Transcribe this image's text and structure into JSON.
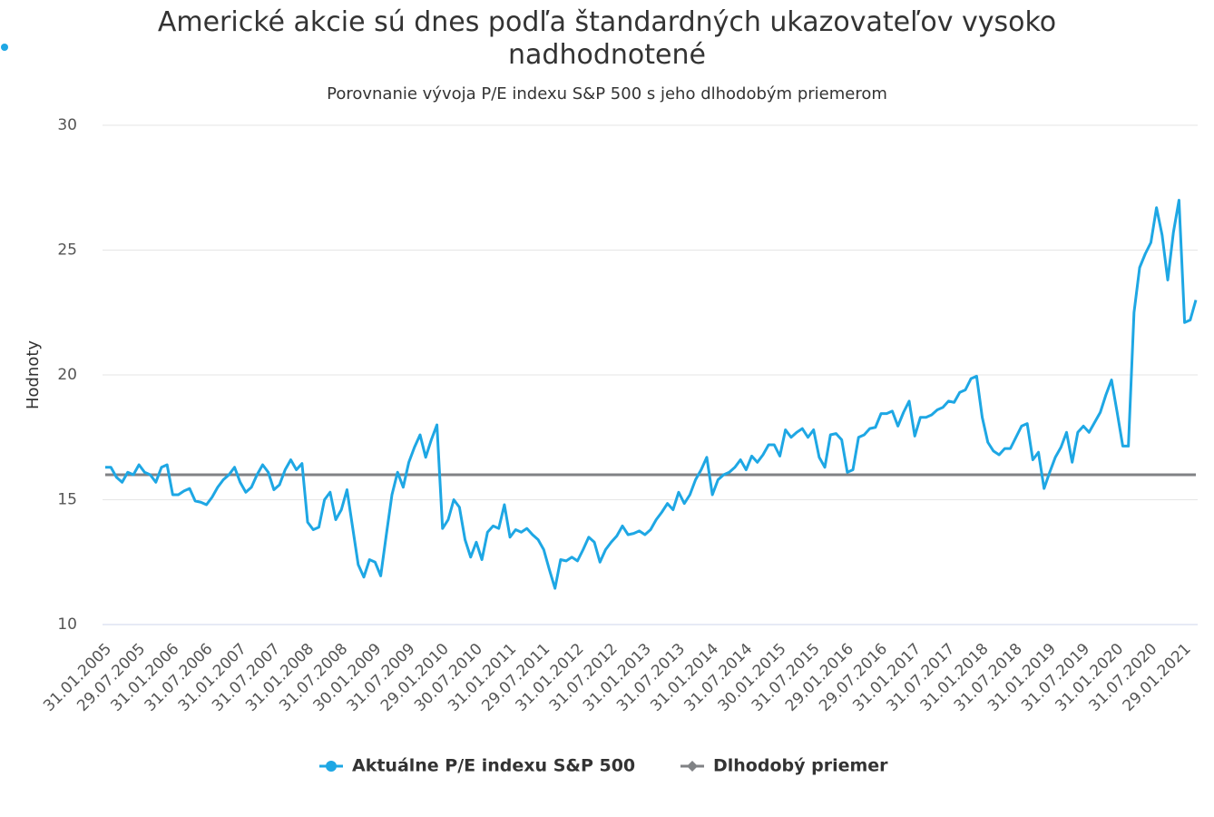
{
  "chart_data": {
    "type": "line",
    "title": "Americké akcie sú dnes podľa štandardných ukazovateľov vysoko nadhodnotené",
    "subtitle": "Porovnanie vývoja P/E indexu S&P 500 s jeho dlhodobým priemerom",
    "y_label": "Hodnoty",
    "categories": [
      "31.01.2005",
      null,
      null,
      null,
      null,
      null,
      "29.07.2005",
      null,
      null,
      null,
      null,
      null,
      "31.01.2006",
      null,
      null,
      null,
      null,
      null,
      "31.07.2006",
      null,
      null,
      null,
      null,
      null,
      "31.01.2007",
      null,
      null,
      null,
      null,
      null,
      "31.07.2007",
      null,
      null,
      null,
      null,
      null,
      "31.01.2008",
      null,
      null,
      null,
      null,
      null,
      "31.07.2008",
      null,
      null,
      null,
      null,
      null,
      "30.01.2009",
      null,
      null,
      null,
      null,
      null,
      "31.07.2009",
      null,
      null,
      null,
      null,
      null,
      "29.01.2010",
      null,
      null,
      null,
      null,
      null,
      "30.07.2010",
      null,
      null,
      null,
      null,
      null,
      "31.01.2011",
      null,
      null,
      null,
      null,
      null,
      "29.07.2011",
      null,
      null,
      null,
      null,
      null,
      "31.01.2012",
      null,
      null,
      null,
      null,
      null,
      "31.07.2012",
      null,
      null,
      null,
      null,
      null,
      "31.01.2013",
      null,
      null,
      null,
      null,
      null,
      "31.07.2013",
      null,
      null,
      null,
      null,
      null,
      "31.01.2014",
      null,
      null,
      null,
      null,
      null,
      "31.07.2014",
      null,
      null,
      null,
      null,
      null,
      "30.01.2015",
      null,
      null,
      null,
      null,
      null,
      "31.07.2015",
      null,
      null,
      null,
      null,
      null,
      "29.01.2016",
      null,
      null,
      null,
      null,
      null,
      "29.07.2016",
      null,
      null,
      null,
      null,
      null,
      "31.01.2017",
      null,
      null,
      null,
      null,
      null,
      "31.07.2017",
      null,
      null,
      null,
      null,
      null,
      "31.01.2018",
      null,
      null,
      null,
      null,
      null,
      "31.07.2018",
      null,
      null,
      null,
      null,
      null,
      "31.01.2019",
      null,
      null,
      null,
      null,
      null,
      "31.07.2019",
      null,
      null,
      null,
      null,
      null,
      "31.01.2020",
      null,
      null,
      null,
      null,
      null,
      "31.07.2020",
      null,
      null,
      null,
      null,
      null,
      "29.01.2021",
      null,
      null
    ],
    "series": [
      {
        "name": "Aktuálne P/E indexu S&P 500",
        "color": "#1ea7e4",
        "marker": "circle",
        "values": [
          16.3,
          16.3,
          15.9,
          15.7,
          16.1,
          16.0,
          16.4,
          16.1,
          16.0,
          15.7,
          16.3,
          16.4,
          15.2,
          15.2,
          15.35,
          15.45,
          14.95,
          14.9,
          14.8,
          15.1,
          15.5,
          15.8,
          16.0,
          16.3,
          15.7,
          15.3,
          15.5,
          16.0,
          16.4,
          16.1,
          15.4,
          15.6,
          16.2,
          16.6,
          16.2,
          16.45,
          14.1,
          13.8,
          13.9,
          15.0,
          15.3,
          14.2,
          14.6,
          15.4,
          13.9,
          12.4,
          11.9,
          12.6,
          12.5,
          11.95,
          13.6,
          15.2,
          16.1,
          15.5,
          16.5,
          17.1,
          17.6,
          16.7,
          17.4,
          18.0,
          13.85,
          14.2,
          15.0,
          14.7,
          13.4,
          12.7,
          13.3,
          12.6,
          13.7,
          13.95,
          13.85,
          14.8,
          13.5,
          13.8,
          13.7,
          13.85,
          13.6,
          13.4,
          13.0,
          12.2,
          11.45,
          12.6,
          12.55,
          12.7,
          12.55,
          13.0,
          13.5,
          13.3,
          12.5,
          13.0,
          13.3,
          13.55,
          13.95,
          13.6,
          13.65,
          13.75,
          13.6,
          13.8,
          14.2,
          14.5,
          14.85,
          14.6,
          15.3,
          14.85,
          15.2,
          15.8,
          16.2,
          16.7,
          15.2,
          15.8,
          16.0,
          16.1,
          16.3,
          16.6,
          16.2,
          16.75,
          16.5,
          16.8,
          17.2,
          17.2,
          16.75,
          17.8,
          17.5,
          17.7,
          17.85,
          17.5,
          17.8,
          16.7,
          16.3,
          17.6,
          17.65,
          17.4,
          16.1,
          16.2,
          17.5,
          17.6,
          17.85,
          17.9,
          18.45,
          18.45,
          18.55,
          17.95,
          18.5,
          18.95,
          17.55,
          18.3,
          18.3,
          18.4,
          18.6,
          18.7,
          18.95,
          18.9,
          19.3,
          19.4,
          19.85,
          19.95,
          18.3,
          17.3,
          16.95,
          16.8,
          17.05,
          17.05,
          17.5,
          17.95,
          18.05,
          16.6,
          16.9,
          15.45,
          16.1,
          16.7,
          17.1,
          17.7,
          16.5,
          17.7,
          17.95,
          17.7,
          18.1,
          18.5,
          19.2,
          19.8,
          18.5,
          17.15,
          17.15,
          22.5,
          24.3,
          24.85,
          25.3,
          26.7,
          25.6,
          23.8,
          25.7,
          27.0,
          22.1,
          22.2,
          23.0
        ]
      },
      {
        "name": "Dlhodobý priemer",
        "color": "#808285",
        "marker": "diamond",
        "values": [
          16,
          16,
          16,
          16,
          16,
          16,
          16,
          16,
          16,
          16,
          16,
          16,
          16,
          16,
          16,
          16,
          16,
          16,
          16,
          16,
          16,
          16,
          16,
          16,
          16,
          16,
          16,
          16,
          16,
          16,
          16,
          16,
          16,
          16,
          16,
          16,
          16,
          16,
          16,
          16,
          16,
          16,
          16,
          16,
          16,
          16,
          16,
          16,
          16,
          16,
          16,
          16,
          16,
          16,
          16,
          16,
          16,
          16,
          16,
          16,
          16,
          16,
          16,
          16,
          16,
          16,
          16,
          16,
          16,
          16,
          16,
          16,
          16,
          16,
          16,
          16,
          16,
          16,
          16,
          16,
          16,
          16,
          16,
          16,
          16,
          16,
          16,
          16,
          16,
          16,
          16,
          16,
          16,
          16,
          16,
          16,
          16,
          16,
          16,
          16,
          16,
          16,
          16,
          16,
          16,
          16,
          16,
          16,
          16,
          16,
          16,
          16,
          16,
          16,
          16,
          16,
          16,
          16,
          16,
          16,
          16,
          16,
          16,
          16,
          16,
          16,
          16,
          16,
          16,
          16,
          16,
          16,
          16,
          16,
          16,
          16,
          16,
          16,
          16,
          16,
          16,
          16,
          16,
          16,
          16,
          16,
          16,
          16,
          16,
          16,
          16,
          16,
          16,
          16,
          16,
          16,
          16,
          16,
          16,
          16,
          16,
          16,
          16,
          16,
          16,
          16,
          16,
          16,
          16,
          16,
          16,
          16,
          16,
          16,
          16,
          16,
          16,
          16,
          16,
          16,
          16,
          16,
          16,
          16,
          16,
          16,
          16,
          16,
          16,
          16,
          16,
          16,
          16,
          16,
          16
        ]
      }
    ],
    "ylim": [
      10,
      30
    ],
    "yticks": [
      10,
      15,
      20,
      25,
      30
    ],
    "grid": true
  }
}
